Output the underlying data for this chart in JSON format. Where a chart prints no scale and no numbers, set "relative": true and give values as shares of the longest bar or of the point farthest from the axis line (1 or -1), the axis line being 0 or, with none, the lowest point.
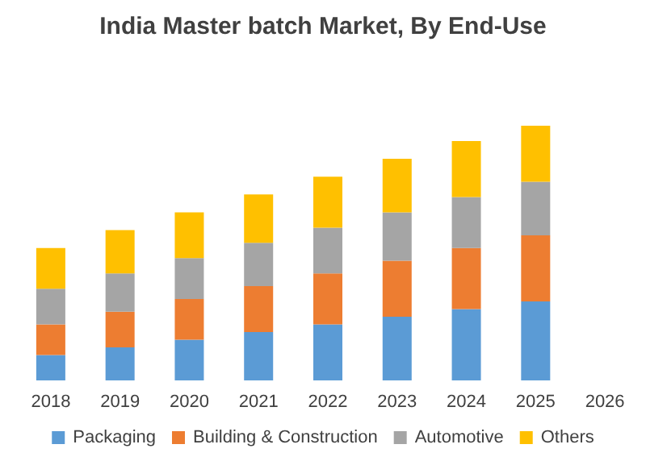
{
  "chart_data": {
    "type": "bar",
    "title": "India Master batch Market, By End-Use",
    "stacked": true,
    "relative": true,
    "legend": "bottom",
    "categories": [
      "2018",
      "2019",
      "2020",
      "2021",
      "2022",
      "2023",
      "2024",
      "2025",
      "2026"
    ],
    "series": [
      {
        "name": "Packaging",
        "color": "#5b9bd5",
        "values": [
          0.1,
          0.13,
          0.16,
          0.19,
          0.22,
          0.25,
          0.28,
          0.31,
          null
        ]
      },
      {
        "name": "Building & Construction",
        "color": "#ed7d31",
        "values": [
          0.12,
          0.14,
          0.16,
          0.18,
          0.2,
          0.22,
          0.24,
          0.26,
          null
        ]
      },
      {
        "name": "Automotive",
        "color": "#a5a5a5",
        "values": [
          0.14,
          0.15,
          0.16,
          0.17,
          0.18,
          0.19,
          0.2,
          0.21,
          null
        ]
      },
      {
        "name": "Others",
        "color": "#ffc000",
        "values": [
          0.16,
          0.17,
          0.18,
          0.19,
          0.2,
          0.21,
          0.22,
          0.22,
          null
        ]
      }
    ]
  }
}
